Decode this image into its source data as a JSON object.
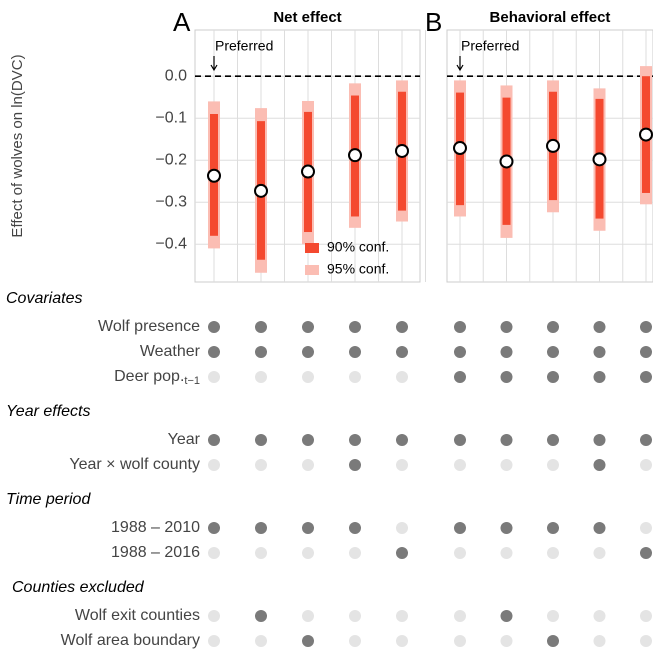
{
  "chart_data": [
    {
      "type": "interval",
      "panel_label": "A",
      "title": "Net effect",
      "y_label": "Effect of wolves on ln(DVC)",
      "annotation": "Preferred",
      "estimates": [
        -0.237,
        -0.273,
        -0.227,
        -0.188,
        -0.178
      ],
      "series": [
        {
          "name": "95% conf.",
          "color": "#fbbdb3",
          "low": [
            -0.41,
            -0.468,
            -0.4,
            -0.361,
            -0.346
          ],
          "high": [
            -0.06,
            -0.076,
            -0.059,
            -0.017,
            -0.01
          ]
        },
        {
          "name": "90% conf.",
          "color": "#f4492f",
          "low": [
            -0.38,
            -0.437,
            -0.371,
            -0.334,
            -0.32
          ],
          "high": [
            -0.09,
            -0.107,
            -0.085,
            -0.046,
            -0.037
          ]
        }
      ],
      "ylim": [
        -0.49,
        0.11
      ],
      "yticks": [
        {
          "value": 0,
          "label": "0.0"
        },
        {
          "value": -0.1,
          "label": "−0.1"
        },
        {
          "value": -0.2,
          "label": "−0.2"
        },
        {
          "value": -0.3,
          "label": "−0.3"
        },
        {
          "value": -0.4,
          "label": "−0.4"
        }
      ],
      "reference_line": 0,
      "grid": true,
      "legend": "bottom-right"
    },
    {
      "type": "interval",
      "panel_label": "B",
      "title": "Behavioral effect",
      "annotation": "Preferred",
      "estimates": [
        -0.171,
        -0.203,
        -0.166,
        -0.198,
        -0.139
      ],
      "series": [
        {
          "name": "95% conf.",
          "color": "#fbbdb3",
          "low": [
            -0.334,
            -0.385,
            -0.324,
            -0.368,
            -0.305
          ],
          "high": [
            -0.01,
            -0.022,
            -0.01,
            -0.029,
            0.024
          ]
        },
        {
          "name": "90% conf.",
          "color": "#f4492f",
          "low": [
            -0.307,
            -0.354,
            -0.295,
            -0.339,
            -0.278
          ],
          "high": [
            -0.039,
            -0.051,
            -0.037,
            -0.054,
            0.0
          ]
        }
      ],
      "ylim": [
        -0.49,
        0.11
      ],
      "yticks": [
        0,
        -0.1,
        -0.2,
        -0.3,
        -0.4
      ],
      "reference_line": 0,
      "grid": true
    }
  ],
  "specification_table": {
    "groups": [
      {
        "title": "Covariates",
        "rows": [
          {
            "label": "Wolf presence",
            "included": [
              true,
              true,
              true,
              true,
              true,
              true,
              true,
              true,
              true,
              true
            ]
          },
          {
            "label": "Weather",
            "included": [
              true,
              true,
              true,
              true,
              true,
              true,
              true,
              true,
              true,
              true
            ]
          },
          {
            "label": "Deer pop.",
            "subscript": "t−1",
            "included": [
              false,
              false,
              false,
              false,
              false,
              true,
              true,
              true,
              true,
              true
            ]
          }
        ]
      },
      {
        "title": "Year effects",
        "rows": [
          {
            "label": "Year",
            "included": [
              true,
              true,
              true,
              true,
              true,
              true,
              true,
              true,
              true,
              true
            ]
          },
          {
            "label": "Year × wolf county",
            "included": [
              false,
              false,
              false,
              true,
              false,
              false,
              false,
              false,
              true,
              false
            ]
          }
        ]
      },
      {
        "title": "Time period",
        "rows": [
          {
            "label": "1988 – 2010",
            "included": [
              true,
              true,
              true,
              true,
              false,
              true,
              true,
              true,
              true,
              false
            ]
          },
          {
            "label": "1988 – 2016",
            "included": [
              false,
              false,
              false,
              false,
              true,
              false,
              false,
              false,
              false,
              true
            ]
          }
        ]
      },
      {
        "title": "Counties excluded",
        "rows": [
          {
            "label": "Wolf exit counties",
            "included": [
              false,
              true,
              false,
              false,
              false,
              false,
              true,
              false,
              false,
              false
            ]
          },
          {
            "label": "Wolf area boundary",
            "included": [
              false,
              false,
              true,
              false,
              false,
              false,
              false,
              true,
              false,
              false
            ]
          }
        ]
      }
    ]
  }
}
